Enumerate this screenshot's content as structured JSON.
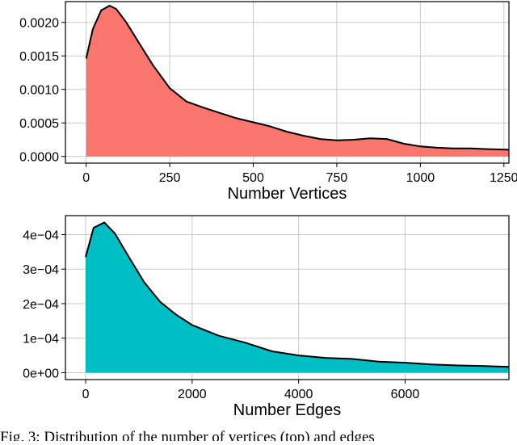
{
  "caption": "Fig. 3: Distribution of the number of vertices (top) and edges",
  "chart_data": [
    {
      "type": "area",
      "xlabel": "Number Vertices",
      "ylabel": "",
      "xlim": [
        -62,
        1265
      ],
      "ylim": [
        -0.0001,
        0.00231
      ],
      "xticks": [
        0,
        250,
        500,
        750,
        1000,
        1250
      ],
      "xtick_labels": [
        "0",
        "250",
        "500",
        "750",
        "1000",
        "1250"
      ],
      "yticks": [
        0.0,
        0.0005,
        0.001,
        0.0015,
        0.002
      ],
      "ytick_labels": [
        "0.0000",
        "0.0005",
        "0.0010",
        "0.0015",
        "0.0020"
      ],
      "grid": true,
      "fill_color": "#F8766D",
      "x": [
        0,
        20,
        45,
        70,
        90,
        120,
        160,
        200,
        250,
        300,
        350,
        400,
        450,
        500,
        550,
        600,
        650,
        700,
        750,
        800,
        850,
        900,
        950,
        1000,
        1050,
        1100,
        1150,
        1200,
        1265
      ],
      "y": [
        0.00146,
        0.0019,
        0.00218,
        0.00225,
        0.0022,
        0.002,
        0.00168,
        0.00136,
        0.00102,
        0.00082,
        0.00073,
        0.00065,
        0.00057,
        0.00051,
        0.00045,
        0.00037,
        0.00031,
        0.00026,
        0.00024,
        0.00025,
        0.00027,
        0.00026,
        0.00019,
        0.00015,
        0.00013,
        0.00012,
        0.00012,
        0.00011,
        0.0001
      ]
    },
    {
      "type": "area",
      "xlabel": "Number Edges",
      "ylabel": "",
      "xlim": [
        -380,
        7950
      ],
      "ylim": [
        -2e-05,
        0.000455
      ],
      "xticks": [
        0,
        2000,
        4000,
        6000
      ],
      "xtick_labels": [
        "0",
        "2000",
        "4000",
        "6000"
      ],
      "yticks": [
        0,
        0.0001,
        0.0002,
        0.0003,
        0.0004
      ],
      "ytick_labels": [
        "0e+00",
        "1e−04",
        "2e−04",
        "3e−04",
        "4e−04"
      ],
      "grid": true,
      "fill_color": "#00BFC4",
      "x": [
        0,
        150,
        350,
        550,
        800,
        1100,
        1400,
        1700,
        2000,
        2500,
        3000,
        3500,
        4000,
        4500,
        5000,
        5500,
        6000,
        6500,
        7000,
        7500,
        7950
      ],
      "y": [
        0.000335,
        0.00042,
        0.000435,
        0.000403,
        0.000338,
        0.000262,
        0.000205,
        0.000168,
        0.000138,
        0.000107,
        8.7e-05,
        6.2e-05,
        5e-05,
        4.3e-05,
        4e-05,
        3.2e-05,
        2.9e-05,
        2.4e-05,
        2.1e-05,
        1.9e-05,
        1.7e-05
      ]
    }
  ]
}
